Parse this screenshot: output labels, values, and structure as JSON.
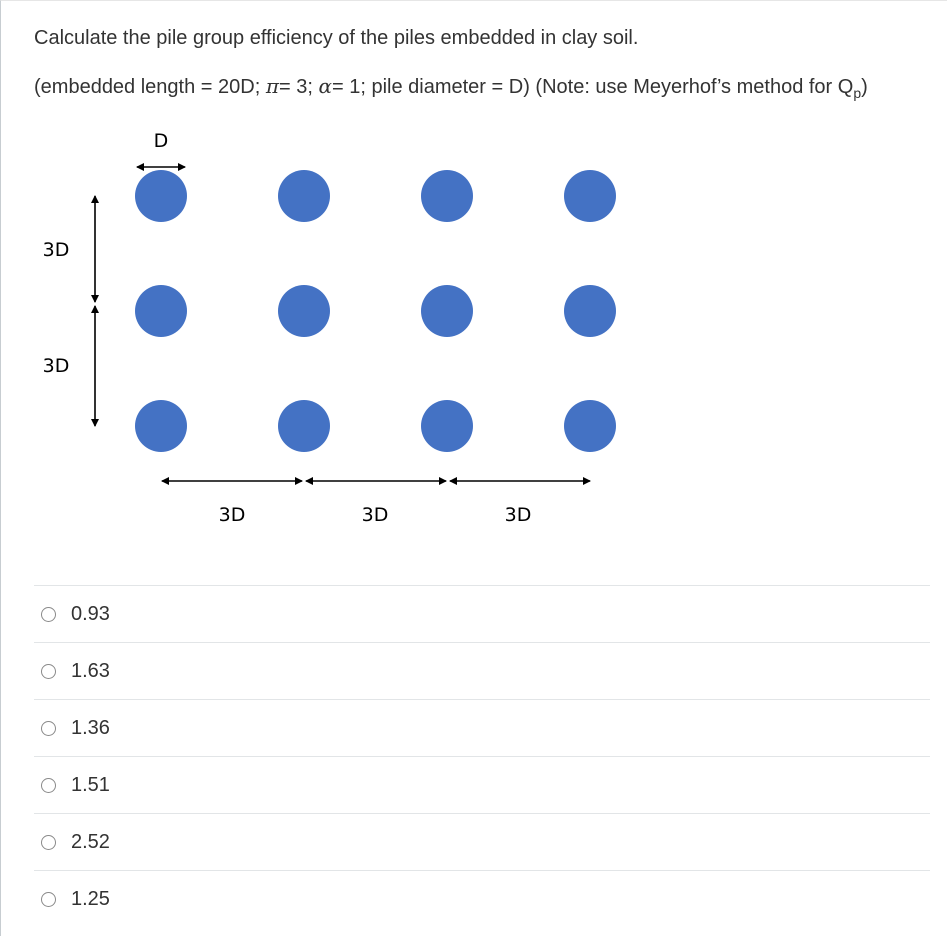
{
  "question": {
    "text": "Calculate the pile group efficiency of the piles embedded in clay soil.",
    "params_prefix": "(embedded length = 20D; ",
    "pi_symbol": "π",
    "pi_value": "= 3; ",
    "alpha_symbol": "α",
    "alpha_value": "= 1; pile diameter = D) (Note: use Meyerhof’s method for Q",
    "qp_subscript": "p",
    "params_suffix": ")"
  },
  "diagram": {
    "pile_color": "#4472c4",
    "pile_rows": 3,
    "pile_cols": 4,
    "diameter_label": "D",
    "vertical_spacing_labels": [
      "3D",
      "3D"
    ],
    "horizontal_spacing_labels": [
      "3D",
      "3D",
      "3D"
    ]
  },
  "options": [
    {
      "label": "0.93",
      "selected": false
    },
    {
      "label": "1.63",
      "selected": false
    },
    {
      "label": "1.36",
      "selected": false
    },
    {
      "label": "1.51",
      "selected": false
    },
    {
      "label": "2.52",
      "selected": false
    },
    {
      "label": "1.25",
      "selected": false
    }
  ]
}
